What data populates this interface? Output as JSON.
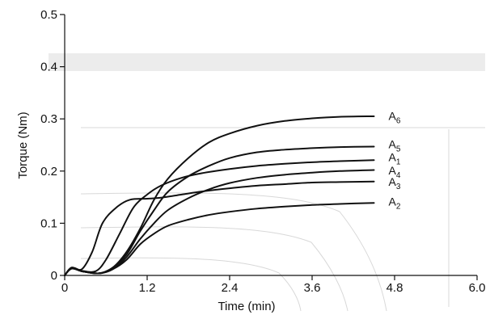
{
  "chart_data": {
    "type": "line",
    "xlabel": "Time (min)",
    "ylabel": "Torque (Nm)",
    "xlim": [
      0,
      6.0
    ],
    "ylim": [
      0,
      0.5
    ],
    "x_ticks": [
      "0",
      "1.2",
      "2.4",
      "3.6",
      "4.8",
      "6.0"
    ],
    "y_ticks": [
      "0",
      "0.1",
      "0.2",
      "0.3",
      "0.4",
      "0.5"
    ],
    "grid": false,
    "series": [
      {
        "name": "A6",
        "label_base": "A",
        "label_sub": "6",
        "label_at_y": 0.304,
        "points": [
          [
            0,
            0
          ],
          [
            0.1,
            0.014
          ],
          [
            0.25,
            0.008
          ],
          [
            0.5,
            0.004
          ],
          [
            0.7,
            0.015
          ],
          [
            0.9,
            0.045
          ],
          [
            1.1,
            0.09
          ],
          [
            1.3,
            0.145
          ],
          [
            1.5,
            0.185
          ],
          [
            1.8,
            0.225
          ],
          [
            2.1,
            0.255
          ],
          [
            2.4,
            0.272
          ],
          [
            2.8,
            0.287
          ],
          [
            3.2,
            0.296
          ],
          [
            3.6,
            0.301
          ],
          [
            4.0,
            0.304
          ],
          [
            4.5,
            0.305
          ]
        ]
      },
      {
        "name": "A5",
        "label_base": "A",
        "label_sub": "5",
        "label_at_y": 0.25,
        "points": [
          [
            0,
            0
          ],
          [
            0.1,
            0.014
          ],
          [
            0.25,
            0.008
          ],
          [
            0.5,
            0.004
          ],
          [
            0.7,
            0.015
          ],
          [
            0.9,
            0.04
          ],
          [
            1.1,
            0.085
          ],
          [
            1.3,
            0.125
          ],
          [
            1.5,
            0.16
          ],
          [
            1.8,
            0.19
          ],
          [
            2.1,
            0.21
          ],
          [
            2.4,
            0.225
          ],
          [
            2.8,
            0.236
          ],
          [
            3.2,
            0.241
          ],
          [
            3.6,
            0.244
          ],
          [
            4.0,
            0.246
          ],
          [
            4.5,
            0.247
          ]
        ]
      },
      {
        "name": "A1",
        "label_base": "A",
        "label_sub": "1",
        "label_at_y": 0.225,
        "points": [
          [
            0,
            0
          ],
          [
            0.1,
            0.015
          ],
          [
            0.25,
            0.009
          ],
          [
            0.45,
            0.008
          ],
          [
            0.6,
            0.03
          ],
          [
            0.8,
            0.08
          ],
          [
            1.0,
            0.13
          ],
          [
            1.2,
            0.155
          ],
          [
            1.4,
            0.172
          ],
          [
            1.7,
            0.187
          ],
          [
            2.0,
            0.196
          ],
          [
            2.4,
            0.204
          ],
          [
            2.8,
            0.21
          ],
          [
            3.2,
            0.214
          ],
          [
            3.6,
            0.217
          ],
          [
            4.0,
            0.219
          ],
          [
            4.5,
            0.221
          ]
        ]
      },
      {
        "name": "A4",
        "label_base": "A",
        "label_sub": "4",
        "label_at_y": 0.2,
        "points": [
          [
            0,
            0
          ],
          [
            0.1,
            0.014
          ],
          [
            0.25,
            0.008
          ],
          [
            0.5,
            0.004
          ],
          [
            0.7,
            0.012
          ],
          [
            0.9,
            0.035
          ],
          [
            1.1,
            0.07
          ],
          [
            1.3,
            0.1
          ],
          [
            1.5,
            0.125
          ],
          [
            1.8,
            0.148
          ],
          [
            2.1,
            0.165
          ],
          [
            2.4,
            0.177
          ],
          [
            2.8,
            0.187
          ],
          [
            3.2,
            0.193
          ],
          [
            3.6,
            0.197
          ],
          [
            4.0,
            0.2
          ],
          [
            4.5,
            0.202
          ]
        ]
      },
      {
        "name": "A3",
        "label_base": "A",
        "label_sub": "3",
        "label_at_y": 0.178,
        "points": [
          [
            0,
            0
          ],
          [
            0.1,
            0.015
          ],
          [
            0.25,
            0.012
          ],
          [
            0.4,
            0.045
          ],
          [
            0.55,
            0.1
          ],
          [
            0.75,
            0.13
          ],
          [
            0.95,
            0.145
          ],
          [
            1.2,
            0.147
          ],
          [
            1.4,
            0.149
          ],
          [
            1.7,
            0.155
          ],
          [
            2.0,
            0.161
          ],
          [
            2.4,
            0.167
          ],
          [
            2.8,
            0.172
          ],
          [
            3.2,
            0.175
          ],
          [
            3.6,
            0.178
          ],
          [
            4.0,
            0.179
          ],
          [
            4.5,
            0.18
          ]
        ]
      },
      {
        "name": "A2",
        "label_base": "A",
        "label_sub": "2",
        "label_at_y": 0.14,
        "points": [
          [
            0,
            0
          ],
          [
            0.1,
            0.013
          ],
          [
            0.25,
            0.008
          ],
          [
            0.5,
            0.004
          ],
          [
            0.7,
            0.012
          ],
          [
            0.9,
            0.03
          ],
          [
            1.1,
            0.06
          ],
          [
            1.3,
            0.08
          ],
          [
            1.5,
            0.095
          ],
          [
            1.8,
            0.107
          ],
          [
            2.1,
            0.116
          ],
          [
            2.4,
            0.122
          ],
          [
            2.8,
            0.128
          ],
          [
            3.2,
            0.132
          ],
          [
            3.6,
            0.135
          ],
          [
            4.0,
            0.137
          ],
          [
            4.5,
            0.139
          ]
        ]
      }
    ]
  }
}
